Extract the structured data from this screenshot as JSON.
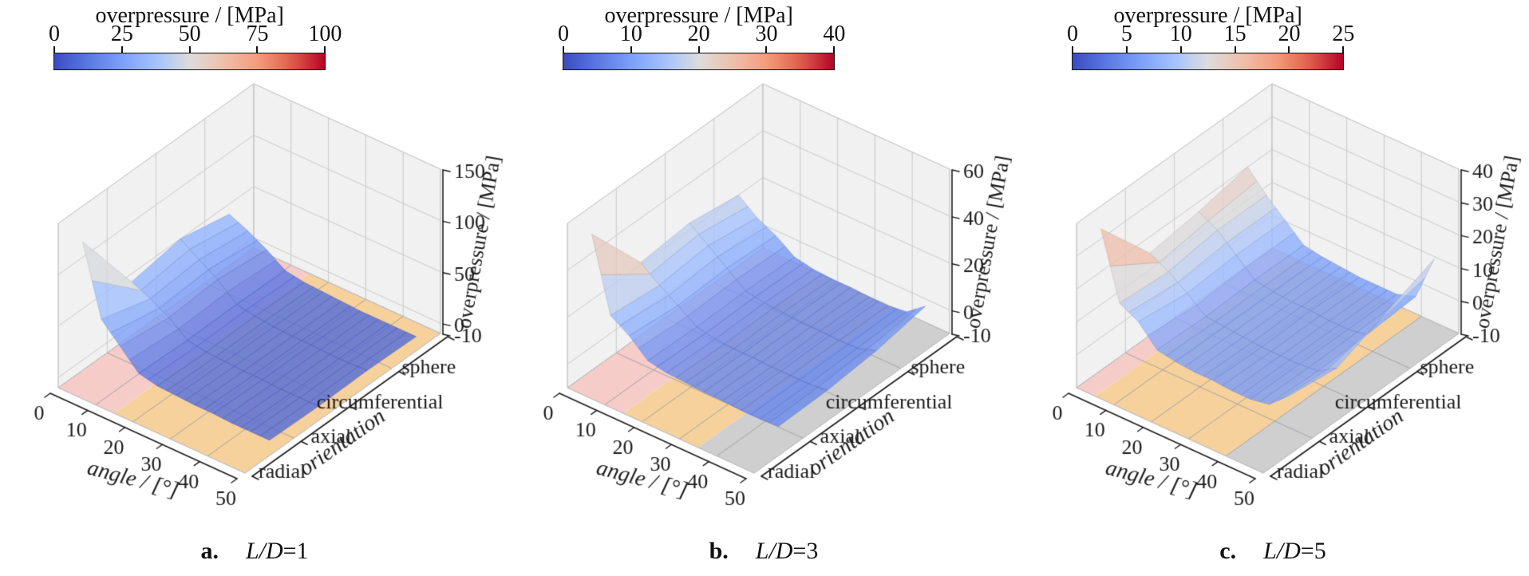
{
  "page": {
    "background": "#ffffff"
  },
  "colormap": {
    "name": "coolwarm",
    "stops": [
      [
        0,
        "#3b4cc0"
      ],
      [
        0.125,
        "#5a78e4"
      ],
      [
        0.25,
        "#7c9ff9"
      ],
      [
        0.375,
        "#a3c2ff"
      ],
      [
        0.5,
        "#dcdcdc"
      ],
      [
        0.625,
        "#eec0ab"
      ],
      [
        0.75,
        "#f59c7d"
      ],
      [
        0.875,
        "#de604d"
      ],
      [
        1,
        "#b40426"
      ]
    ]
  },
  "style_colors": {
    "floor_pink": "#f5c9c6",
    "floor_orange": "#f7cf97",
    "floor_gray": "#cccccc",
    "pane": "#f1f1f2",
    "pane_edge": "#c4c4c4",
    "grid_wall": "#c9c9c9",
    "grid_floor": "#9b9b9b",
    "axis": "#1a1a1a",
    "surface_alpha": 0.8
  },
  "chart_data": [
    {
      "type": "surface3d",
      "panel_label": "a.",
      "condition_italic": "L/D",
      "condition_rest": "=1",
      "colorbar": {
        "title": "overpressure / [MPa]",
        "ticks": [
          0,
          25,
          50,
          75,
          100
        ],
        "min": 0,
        "max": 100
      },
      "x": {
        "label": "angle / [°]",
        "ticks": [
          0,
          10,
          20,
          30,
          40,
          50
        ],
        "min": 0,
        "max": 50
      },
      "y": {
        "label": "orientation",
        "categories": [
          "radial",
          "axial",
          "circumferential",
          "sphere"
        ]
      },
      "z": {
        "label": "overpressure / [MPa]",
        "ticks": [
          -10,
          0,
          50,
          100,
          150
        ],
        "min": -10,
        "max": 150
      },
      "floor_zones": [
        {
          "from": 0,
          "to": 15,
          "color_key": "floor_pink"
        },
        {
          "from": 15,
          "to": 50,
          "color_key": "floor_orange"
        }
      ],
      "angles": [
        0,
        5,
        10,
        15,
        20,
        25,
        30,
        35,
        40,
        45,
        50
      ],
      "series": [
        {
          "name": "radial",
          "values": [
            115,
            48,
            30,
            12,
            8,
            7,
            6,
            6,
            5,
            5,
            5
          ]
        },
        {
          "name": "axial",
          "values": [
            42,
            34,
            24,
            10,
            7,
            6,
            5,
            5,
            4,
            4,
            4
          ]
        },
        {
          "name": "circumferential",
          "values": [
            50,
            38,
            27,
            11,
            8,
            6,
            5,
            5,
            4,
            4,
            5
          ]
        },
        {
          "name": "sphere",
          "values": [
            40,
            32,
            22,
            10,
            7,
            6,
            5,
            4,
            4,
            4,
            4
          ]
        }
      ]
    },
    {
      "type": "surface3d",
      "panel_label": "b.",
      "condition_italic": "L/D",
      "condition_rest": "=3",
      "colorbar": {
        "title": "overpressure / [MPa]",
        "ticks": [
          0,
          10,
          20,
          30,
          40
        ],
        "min": 0,
        "max": 40
      },
      "x": {
        "label": "angle / [°]",
        "ticks": [
          0,
          10,
          20,
          30,
          40,
          50
        ],
        "min": 0,
        "max": 50
      },
      "y": {
        "label": "orientation",
        "categories": [
          "radial",
          "axial",
          "circumferential",
          "sphere"
        ]
      },
      "z": {
        "label": "overpressure / [MPa]",
        "ticks": [
          -10,
          0,
          20,
          40,
          60
        ],
        "min": -10,
        "max": 60
      },
      "floor_zones": [
        {
          "from": 0,
          "to": 15,
          "color_key": "floor_pink"
        },
        {
          "from": 15,
          "to": 35,
          "color_key": "floor_orange"
        },
        {
          "from": 35,
          "to": 50,
          "color_key": "floor_gray"
        }
      ],
      "angles": [
        0,
        5,
        10,
        15,
        20,
        25,
        30,
        35,
        40,
        45,
        50
      ],
      "series": [
        {
          "name": "radial",
          "values": [
            48,
            17,
            12,
            5,
            3.5,
            3,
            2.5,
            2.5,
            2,
            2,
            2.5
          ]
        },
        {
          "name": "axial",
          "values": [
            21,
            15,
            10,
            4.5,
            3,
            2.5,
            2.5,
            2,
            2,
            2,
            3
          ]
        },
        {
          "name": "circumferential",
          "values": [
            23,
            17,
            11,
            5,
            3.5,
            3,
            2.5,
            2.5,
            2,
            2.5,
            5
          ]
        },
        {
          "name": "sphere",
          "values": [
            20,
            14,
            10,
            4.5,
            3,
            2.5,
            2.5,
            2,
            2,
            3,
            9
          ]
        }
      ]
    },
    {
      "type": "surface3d",
      "panel_label": "c.",
      "condition_italic": "L/D",
      "condition_rest": "=5",
      "colorbar": {
        "title": "overpressure / [MPa]",
        "ticks": [
          0,
          5,
          10,
          15,
          20,
          25
        ],
        "min": 0,
        "max": 25
      },
      "x": {
        "label": "angle / [°]",
        "ticks": [
          0,
          10,
          20,
          30,
          40,
          50
        ],
        "min": 0,
        "max": 50
      },
      "y": {
        "label": "orientation",
        "categories": [
          "radial",
          "axial",
          "circumferential",
          "sphere"
        ]
      },
      "z": {
        "label": "overpressure / [MPa]",
        "ticks": [
          -10,
          0,
          10,
          20,
          30,
          40
        ],
        "min": -10,
        "max": 40
      },
      "floor_zones": [
        {
          "from": 0,
          "to": 5,
          "color_key": "floor_pink"
        },
        {
          "from": 5,
          "to": 40,
          "color_key": "floor_orange"
        },
        {
          "from": 40,
          "to": 50,
          "color_key": "floor_gray"
        }
      ],
      "angles": [
        0,
        5,
        10,
        15,
        20,
        25,
        30,
        35,
        40,
        45,
        50
      ],
      "series": [
        {
          "name": "radial",
          "values": [
            33,
            13,
            10,
            4,
            3,
            2.5,
            2.5,
            2,
            2,
            3,
            8
          ]
        },
        {
          "name": "axial",
          "values": [
            15,
            12,
            8,
            3.5,
            3,
            2.5,
            2,
            2,
            2,
            2.5,
            6
          ]
        },
        {
          "name": "circumferential",
          "values": [
            17,
            14,
            9,
            4,
            3,
            2.5,
            2.5,
            2,
            2,
            3,
            12
          ]
        },
        {
          "name": "sphere",
          "values": [
            20,
            14,
            9,
            4,
            3,
            2.5,
            2,
            2,
            2,
            4,
            18
          ]
        }
      ]
    }
  ]
}
